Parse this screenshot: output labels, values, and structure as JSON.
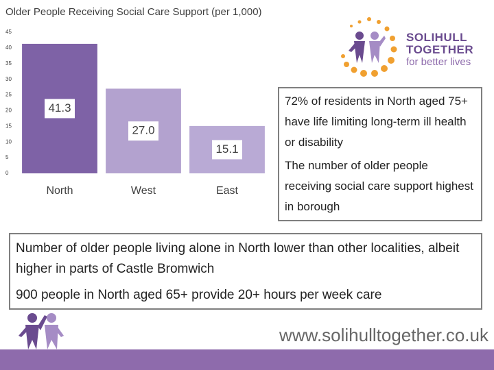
{
  "chart_data": {
    "type": "bar",
    "title": "Older People Receiving Social Care Support (per 1,000)",
    "categories": [
      "North",
      "West",
      "East"
    ],
    "values": [
      41.3,
      27.0,
      15.1
    ],
    "value_labels": [
      "41.3",
      "27.0",
      "15.1"
    ],
    "colors": [
      "#7e62a6",
      "#b3a2cf",
      "#b9aad5"
    ],
    "ylim": [
      0,
      45
    ],
    "yticks": [
      0,
      5,
      10,
      15,
      20,
      25,
      30,
      35,
      40,
      45
    ],
    "grid": false
  },
  "logo": {
    "line1": "SOLIHULL",
    "line2": "TOGETHER",
    "tagline": "for better lives"
  },
  "box1": {
    "paragraphs": [
      "72% of residents in North aged 75+ have life limiting long-term ill health or disability",
      "The number of older people receiving social care support highest in borough"
    ]
  },
  "box2": {
    "paragraphs": [
      "Number of older people living alone in North lower than other localities, albeit higher in parts of Castle Bromwich",
      "900 people in North aged 65+ provide 20+ hours per week care"
    ]
  },
  "footer": {
    "url": "www.solihulltogether.co.uk"
  }
}
